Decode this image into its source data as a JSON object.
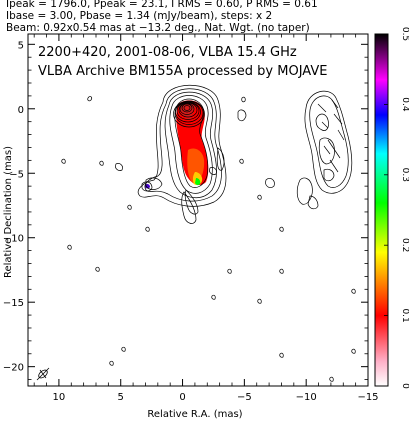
{
  "header": {
    "line1": "Ipeak = 1796.0, Ppeak = 23.1, I RMS = 0.60, P RMS = 0.61",
    "line2": "Ibase = 3.00, Pbase = 1.34 (mJy/beam), steps: x 2",
    "line3": "Beam: 0.92x0.54 mas at −13.2 deg., Nat. Wgt. (no taper)"
  },
  "chart_data": {
    "type": "heatmap",
    "title": "2200+420, 2001-08-06, VLBA 15.4 GHz",
    "subtitle": "VLBA Archive BM155A processed by MOJAVE",
    "xlabel": "Relative R.A. (mas)",
    "ylabel": "Relative Declination (mas)",
    "xlim": [
      12.5,
      -15
    ],
    "ylim": [
      -21.5,
      5.8
    ],
    "x_ticks": [
      10,
      5,
      0,
      -5,
      -10,
      -15
    ],
    "x_tick_labels": [
      "10",
      "5",
      "0",
      "−5",
      "−10",
      "−15"
    ],
    "y_ticks": [
      5,
      0,
      -5,
      -10,
      -15,
      -20
    ],
    "y_tick_labels": [
      "5",
      "0",
      "−5",
      "−10",
      "−15",
      "−20"
    ],
    "colorbar": {
      "range": [
        0,
        0.5
      ],
      "ticks": [
        0,
        0.1,
        0.2,
        0.3,
        0.4,
        0.5
      ],
      "tick_labels": [
        "0",
        "0.1",
        "0.2",
        "0.3",
        "0.4",
        "0.5"
      ],
      "colors": [
        "#ffffff",
        "#ff0000",
        "#ffff00",
        "#00ff00",
        "#00ffff",
        "#0000ff",
        "#ff00ff",
        "#000000"
      ]
    },
    "grid": false
  }
}
